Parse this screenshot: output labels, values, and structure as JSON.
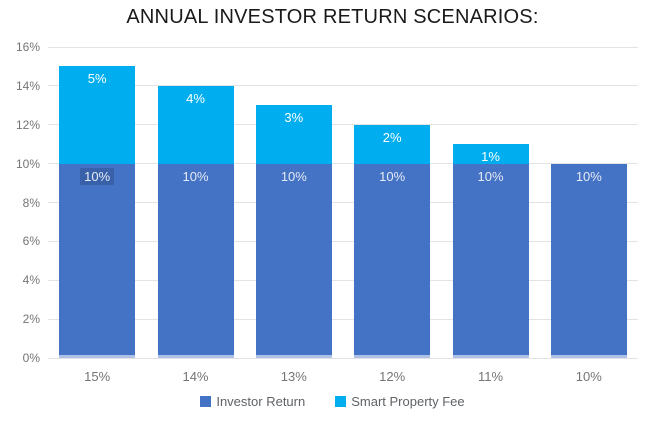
{
  "title": "ANNUAL INVESTOR RETURN SCENARIOS:",
  "chart_data": {
    "type": "bar",
    "stacked": true,
    "title": "ANNUAL INVESTOR RETURN SCENARIOS:",
    "categories": [
      "15%",
      "14%",
      "13%",
      "12%",
      "11%",
      "10%"
    ],
    "series": [
      {
        "name": "Investor Return",
        "color": "#4472C4",
        "values": [
          10,
          10,
          10,
          10,
          10,
          10
        ]
      },
      {
        "name": "Smart Property Fee",
        "color": "#00AEEF",
        "values": [
          5,
          4,
          3,
          2,
          1,
          0
        ]
      }
    ],
    "xlabel": "",
    "ylabel": "",
    "ylim": [
      0,
      16
    ],
    "yticks": [
      0,
      2,
      4,
      6,
      8,
      10,
      12,
      14,
      16
    ],
    "ytick_suffix": "%",
    "data_label_suffix": "%",
    "grid": true,
    "legend_position": "bottom",
    "selected_label": {
      "series_index": 0,
      "category_index": 0
    }
  },
  "colors": {
    "background": "#FFFFFF",
    "title_text": "#1A1A1A",
    "grid": "#E3E3E3",
    "axis_text": "#757575",
    "legend_text": "#5F6368",
    "label_on_dark": "#E6EBF5",
    "label_on_light": "#FFFFFF",
    "bar_base_stripe": "#AEC2E8",
    "selected_label_highlight": "rgba(32,58,105,0.30)"
  }
}
